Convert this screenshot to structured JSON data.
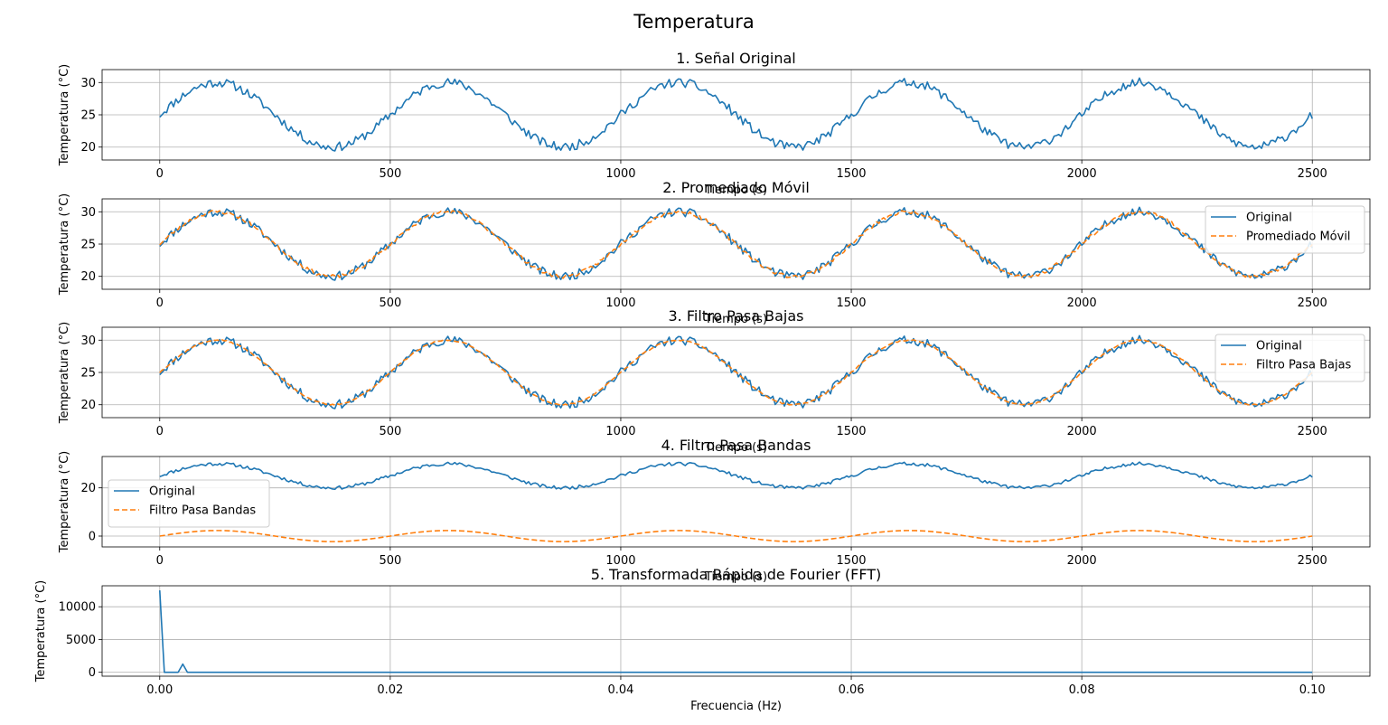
{
  "figure": {
    "title": "Temperatura"
  },
  "colors": {
    "original": "#1f77b4",
    "filtered": "#ff7f0e",
    "grid": "#b0b0b0"
  },
  "chart_data": [
    {
      "type": "line",
      "title": "1. Señal Original",
      "xlabel": "Tiempo (s)",
      "ylabel": "Temperatura (°C)",
      "xlim": [
        -125,
        2625
      ],
      "ylim": [
        18,
        32
      ],
      "xticks": [
        0,
        500,
        1000,
        1500,
        2000,
        2500
      ],
      "yticks": [
        20,
        25,
        30
      ],
      "grid": true,
      "legend": null,
      "series": [
        {
          "kind": "signal",
          "color": "#1f77b4",
          "dash": "solid",
          "noise": 0.7,
          "offset": 25,
          "amplitude": 5,
          "period": 500,
          "x_start": 0,
          "x_end": 2500,
          "seed": 11
        }
      ]
    },
    {
      "type": "line",
      "title": "2. Promediado Móvil",
      "xlabel": "Tiempo (s)",
      "ylabel": "Temperatura (°C)",
      "xlim": [
        -125,
        2625
      ],
      "ylim": [
        18,
        32
      ],
      "xticks": [
        0,
        500,
        1000,
        1500,
        2000,
        2500
      ],
      "yticks": [
        20,
        25,
        30
      ],
      "grid": true,
      "legend": "upper right",
      "series": [
        {
          "name": "Original",
          "kind": "signal",
          "color": "#1f77b4",
          "dash": "solid",
          "noise": 0.7,
          "offset": 25,
          "amplitude": 5,
          "period": 500,
          "x_start": 0,
          "x_end": 2500,
          "seed": 11
        },
        {
          "name": "Promediado Móvil",
          "kind": "signal",
          "color": "#ff7f0e",
          "dash": "dashed",
          "noise": 0.3,
          "offset": 25,
          "amplitude": 5,
          "period": 500,
          "x_start": 0,
          "x_end": 2500,
          "seed": 23
        }
      ]
    },
    {
      "type": "line",
      "title": "3. Filtro Pasa Bajas",
      "xlabel": "Tiempo (s)",
      "ylabel": "Temperatura (°C)",
      "xlim": [
        -125,
        2625
      ],
      "ylim": [
        18,
        32
      ],
      "xticks": [
        0,
        500,
        1000,
        1500,
        2000,
        2500
      ],
      "yticks": [
        20,
        25,
        30
      ],
      "grid": true,
      "legend": "upper right",
      "series": [
        {
          "name": "Original",
          "kind": "signal",
          "color": "#1f77b4",
          "dash": "solid",
          "noise": 0.7,
          "offset": 25,
          "amplitude": 5,
          "period": 500,
          "x_start": 0,
          "x_end": 2500,
          "seed": 11
        },
        {
          "name": "Filtro Pasa Bajas",
          "kind": "signal",
          "color": "#ff7f0e",
          "dash": "dashed",
          "noise": 0.1,
          "offset": 25,
          "amplitude": 5,
          "period": 500,
          "x_start": 0,
          "x_end": 2500,
          "seed": 37
        }
      ]
    },
    {
      "type": "line",
      "title": "4. Filtro Pasa Bandas",
      "xlabel": "Tiempo (s)",
      "ylabel": "Temperatura (°C)",
      "xlim": [
        -125,
        2625
      ],
      "ylim": [
        -4.5,
        33
      ],
      "xticks": [
        0,
        500,
        1000,
        1500,
        2000,
        2500
      ],
      "yticks": [
        0,
        20
      ],
      "grid": true,
      "legend": "center left",
      "series": [
        {
          "name": "Original",
          "kind": "signal",
          "color": "#1f77b4",
          "dash": "solid",
          "noise": 0.7,
          "offset": 25,
          "amplitude": 5,
          "period": 500,
          "x_start": 0,
          "x_end": 2500,
          "seed": 11
        },
        {
          "name": "Filtro Pasa Bandas",
          "kind": "signal",
          "color": "#ff7f0e",
          "dash": "dashed",
          "noise": 0,
          "offset": 0,
          "amplitude": 2.3,
          "period": 500,
          "x_start": 0,
          "x_end": 2500,
          "seed": 5
        }
      ]
    },
    {
      "type": "line",
      "title": "5. Transformada Rápida de Fourier (FFT)",
      "xlabel": "Frecuencia (Hz)",
      "ylabel": "Temperatura (°C)",
      "xlim": [
        -0.005,
        0.105
      ],
      "ylim": [
        -600,
        13200
      ],
      "xticks": [
        0.0,
        0.02,
        0.04,
        0.06,
        0.08,
        0.1
      ],
      "xtick_labels": [
        "0.00",
        "0.02",
        "0.04",
        "0.06",
        "0.08",
        "0.10"
      ],
      "yticks": [
        0,
        5000,
        10000
      ],
      "grid": true,
      "legend": null,
      "series": [
        {
          "kind": "points",
          "color": "#1f77b4",
          "dash": "solid",
          "x": [
            0.0,
            0.0004,
            0.0008,
            0.0012,
            0.0016,
            0.002,
            0.0024,
            0.0028,
            0.1
          ],
          "y": [
            12500,
            0,
            0,
            0,
            0,
            1250,
            0,
            0,
            0
          ]
        }
      ]
    }
  ]
}
